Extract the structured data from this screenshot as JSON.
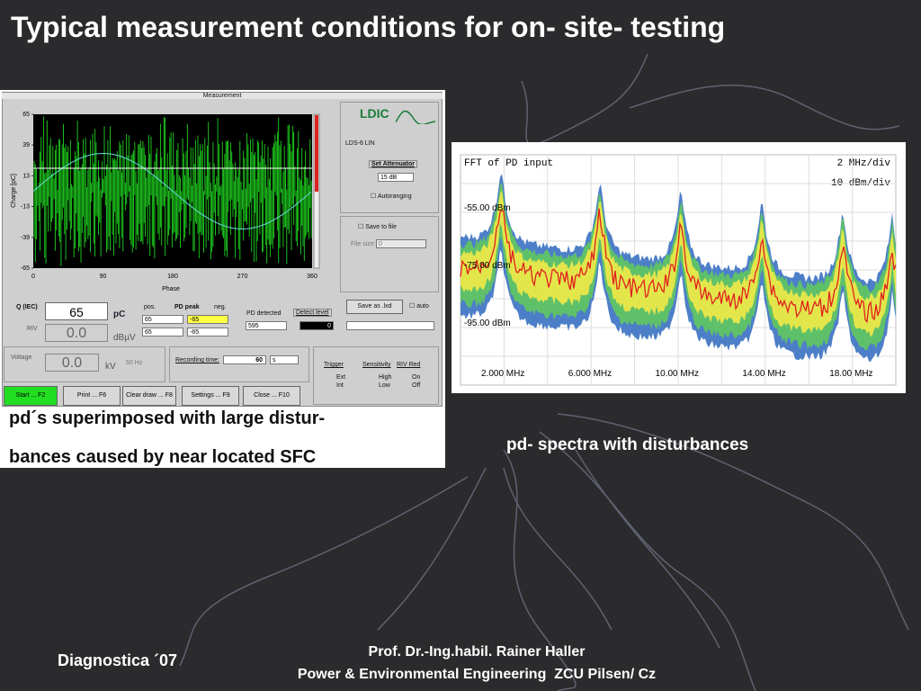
{
  "title": "Typical measurement conditions for on- site- testing",
  "ldic_panel": {
    "window_title": "Measurement",
    "y_ticks": [
      "65",
      "39",
      "13",
      "-13",
      "-39",
      "-65"
    ],
    "y_axis_label": "Charge [pC]",
    "x_ticks": [
      "0",
      "90",
      "180",
      "270",
      "360"
    ],
    "x_axis_label": "Phase",
    "logo": "LDIC",
    "model": "LDS-6 LIN",
    "set_attenuator": "Set Attenuator",
    "attenuation": "15 dB",
    "autoranging": "Autoranging",
    "save_to_file": "Save to file",
    "file_size_label": "File size:",
    "file_size": "0",
    "save_as": "Save as .lxd",
    "auto": "auto",
    "q_label": "Q (IEC)",
    "q_value": "65",
    "q_unit": "pC",
    "riv_label": "RIV",
    "riv_value": "0.0",
    "riv_unit": "dBµV",
    "pos": "pos.",
    "pd_peak": "PD peak",
    "neg": "neg.",
    "peak_rows": [
      [
        "65",
        "-65"
      ],
      [
        "65",
        "-65"
      ]
    ],
    "pd_detected": "PD detected",
    "detect_level": "Detect level",
    "pd_count": "595",
    "level": "0",
    "voltage_label": "Voltage",
    "voltage_value": "0.0",
    "voltage_unit": "kV",
    "frequency": "50 Hz",
    "recording_time": "Recording time:",
    "recording_value": "60",
    "recording_unit": "s",
    "trigger": "Trigger",
    "trigger_options": [
      "Ext",
      "Int"
    ],
    "sensitivity": "Sensitivity",
    "sensitivity_options": [
      "High",
      "Low"
    ],
    "riv_red": "RIV Red",
    "riv_red_options": [
      "On",
      "Off"
    ],
    "buttons": [
      "Start ... F2",
      "Print ... F6",
      "Clear draw ... F8",
      "Settings ... F9",
      "Close ... F10"
    ]
  },
  "ldic_caption": [
    "pd´s superimposed with large distur-",
    "bances caused by near located SFC"
  ],
  "spectrum": {
    "title": "FFT of PD input",
    "x_scale": "2 MHz/div",
    "y_scale": "10 dBm/div",
    "y_labels": [
      "-55.00 dBm",
      "-75.00 dBm",
      "-95.00 dBm"
    ],
    "x_labels": [
      "2.000 MHz",
      "6.000 MHz",
      "10.00 MHz",
      "14.00 MHz",
      "18.00 MHz"
    ]
  },
  "spectrum_caption": "pd- spectra with disturbances",
  "footer": {
    "left": "Diagnostica ´07",
    "author": "Prof. Dr.-Ing.habil. Rainer Haller",
    "affiliation": "Power & Environmental Engineering  ZCU Pilsen/ Cz"
  }
}
